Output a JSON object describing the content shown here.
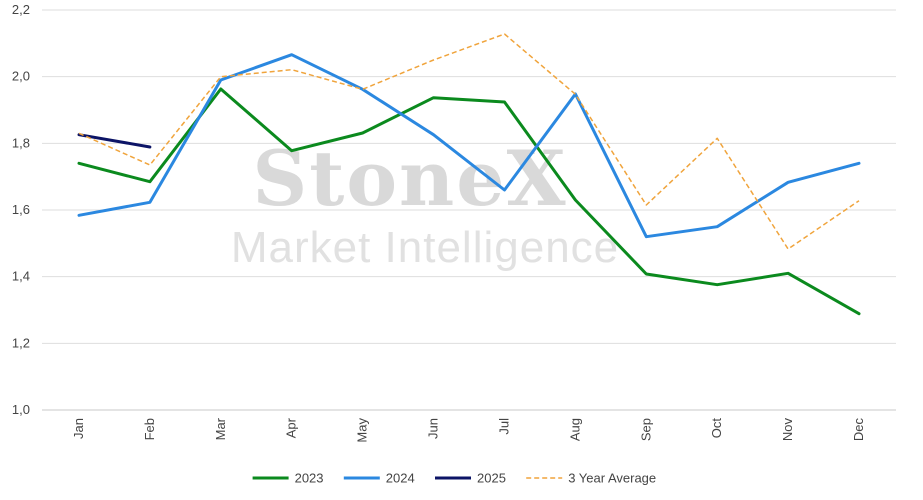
{
  "watermark": {
    "title": "StoneX",
    "subtitle": "Market Intelligence"
  },
  "chart_data": {
    "type": "line",
    "title": "",
    "xlabel": "",
    "ylabel": "",
    "categories": [
      "Jan",
      "Feb",
      "Mar",
      "Apr",
      "May",
      "Jun",
      "Jul",
      "Aug",
      "Sep",
      "Oct",
      "Nov",
      "Dec"
    ],
    "ylim": [
      1.0,
      2.2
    ],
    "yticks": [
      1.0,
      1.2,
      1.4,
      1.6,
      1.8,
      2.0,
      2.2
    ],
    "ytick_labels": [
      "1,0",
      "1,2",
      "1,4",
      "1,6",
      "1,8",
      "2,0",
      "2,2"
    ],
    "grid": "horizontal",
    "legend_position": "bottom",
    "series": [
      {
        "name": "2023",
        "color": "#0b8a1e",
        "style": "solid",
        "values": [
          1.74,
          1.685,
          1.963,
          1.778,
          1.831,
          1.937,
          1.924,
          1.63,
          1.408,
          1.376,
          1.41,
          1.289
        ]
      },
      {
        "name": "2024",
        "color": "#2b88e0",
        "style": "solid",
        "values": [
          1.584,
          1.623,
          1.99,
          2.066,
          1.962,
          1.826,
          1.66,
          1.948,
          1.52,
          1.55,
          1.683,
          1.74
        ]
      },
      {
        "name": "2025",
        "color": "#0c1466",
        "style": "solid",
        "values": [
          1.826,
          1.789,
          null,
          null,
          null,
          null,
          null,
          null,
          null,
          null,
          null,
          null
        ]
      },
      {
        "name": "3 Year Average",
        "color": "#f0a43c",
        "style": "dashed",
        "values": [
          1.83,
          1.735,
          2.0,
          2.021,
          1.962,
          2.05,
          2.128,
          1.947,
          1.615,
          1.815,
          1.483,
          1.628
        ]
      }
    ]
  }
}
